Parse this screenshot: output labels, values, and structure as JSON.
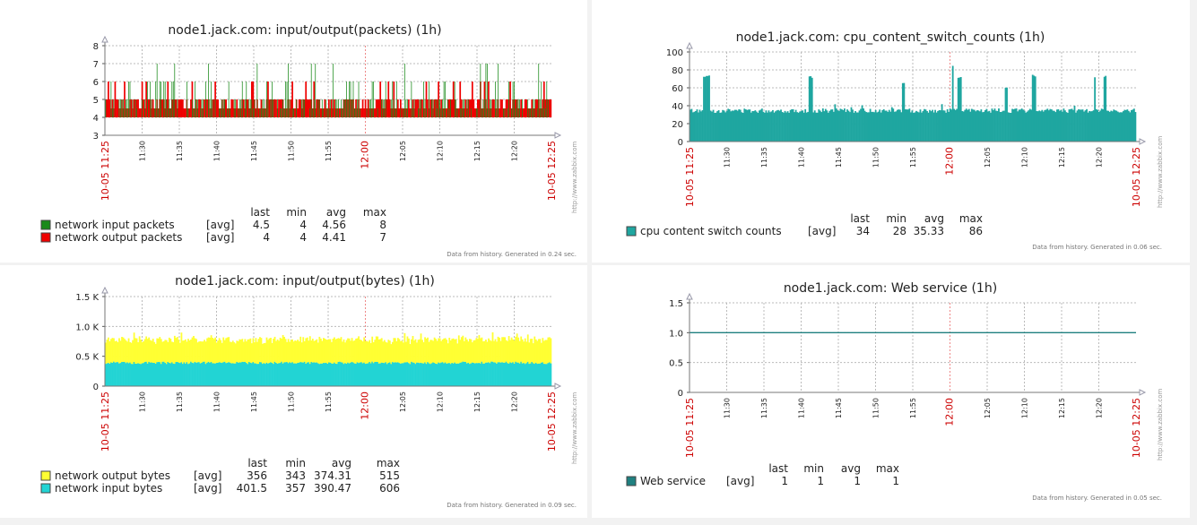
{
  "colors": {
    "green": "#1a8a1a",
    "red": "#ee0000",
    "teal": "#1fa6a0",
    "yellow": "#ffff33",
    "cyan": "#22d4d4",
    "line": "#1f8080",
    "timestamp": "#cc0000"
  },
  "stat_headers": [
    "last",
    "min",
    "avg",
    "max"
  ],
  "chart_data": [
    {
      "type": "bar",
      "title": "node1.jack.com: input/output(packets) (1h)",
      "x_labels": [
        "11:30",
        "11:35",
        "11:40",
        "11:45",
        "11:50",
        "11:55",
        "12:00",
        "12:05",
        "12:10",
        "12:15",
        "12:20"
      ],
      "x_start": "10-05 11:25",
      "x_end": "10-05 12:25",
      "ylim": [
        3,
        8
      ],
      "yticks": [
        "3",
        "4",
        "5",
        "6",
        "7",
        "8"
      ],
      "grid": true,
      "series": [
        {
          "name": "network input packets",
          "func": "[avg]",
          "last": "4.5",
          "min": "4",
          "avg": "4.56",
          "max": "8",
          "range": [
            4,
            7
          ]
        },
        {
          "name": "network output packets",
          "func": "[avg]",
          "last": "4",
          "min": "4",
          "avg": "4.41",
          "max": "7",
          "range": [
            4,
            6
          ]
        }
      ],
      "watermark": "http://www.zabbix.com",
      "generated": "Data from history. Generated in 0.24 sec."
    },
    {
      "type": "area",
      "title": "node1.jack.com: cpu_content_switch_counts (1h)",
      "x_labels": [
        "11:30",
        "11:35",
        "11:40",
        "11:45",
        "11:50",
        "11:55",
        "12:00",
        "12:05",
        "12:10",
        "12:15",
        "12:20"
      ],
      "x_start": "10-05 11:25",
      "x_end": "10-05 12:25",
      "ylim": [
        0,
        100
      ],
      "yticks": [
        "0",
        "20",
        "40",
        "60",
        "80",
        "100"
      ],
      "grid": true,
      "series": [
        {
          "name": "cpu content switch counts",
          "func": "[avg]",
          "last": "34",
          "min": "28",
          "avg": "35.33",
          "max": "86",
          "baseline": 35
        }
      ],
      "spikes": [
        {
          "x": 0.03,
          "y": 74,
          "w": 0.015
        },
        {
          "x": 0.265,
          "y": 72,
          "w": 0.01
        },
        {
          "x": 0.475,
          "y": 65,
          "w": 0.004
        },
        {
          "x": 0.585,
          "y": 86,
          "w": 0.004
        },
        {
          "x": 0.6,
          "y": 72,
          "w": 0.008
        },
        {
          "x": 0.705,
          "y": 60,
          "w": 0.005
        },
        {
          "x": 0.765,
          "y": 74,
          "w": 0.008
        },
        {
          "x": 0.905,
          "y": 72,
          "w": 0.004
        },
        {
          "x": 0.925,
          "y": 73,
          "w": 0.007
        }
      ],
      "watermark": "http://www.zabbix.com",
      "generated": "Data from history. Generated in 0.06 sec."
    },
    {
      "type": "area",
      "title": "node1.jack.com: input/output(bytes) (1h)",
      "x_labels": [
        "11:30",
        "11:35",
        "11:40",
        "11:45",
        "11:50",
        "11:55",
        "12:00",
        "12:05",
        "12:10",
        "12:15",
        "12:20"
      ],
      "x_start": "10-05 11:25",
      "x_end": "10-05 12:25",
      "ylim": [
        0,
        1.5
      ],
      "yticks": [
        "0",
        "0.5 K",
        "1.0 K",
        "1.5 K"
      ],
      "grid": true,
      "series": [
        {
          "name": "network output bytes",
          "func": "[avg]",
          "last": "356",
          "min": "343",
          "avg": "374.31",
          "max": "515"
        },
        {
          "name": "network input bytes",
          "func": "[avg]",
          "last": "401.5",
          "min": "357",
          "avg": "390.47",
          "max": "606"
        }
      ],
      "watermark": "http://www.zabbix.com",
      "generated": "Data from history. Generated in 0.09 sec."
    },
    {
      "type": "line",
      "title": "node1.jack.com: Web service (1h)",
      "x_labels": [
        "11:30",
        "11:35",
        "11:40",
        "11:45",
        "11:50",
        "11:55",
        "12:00",
        "12:05",
        "12:10",
        "12:15",
        "12:20"
      ],
      "x_start": "10-05 11:25",
      "x_end": "10-05 12:25",
      "ylim": [
        0,
        1.5
      ],
      "yticks": [
        "0",
        "0.5",
        "1.0",
        "1.5"
      ],
      "grid": true,
      "series": [
        {
          "name": "Web service",
          "func": "[avg]",
          "last": "1",
          "min": "1",
          "avg": "1",
          "max": "1",
          "value": 1
        }
      ],
      "watermark": "http://www.zabbix.com",
      "generated": "Data from history. Generated in 0.05 sec."
    }
  ]
}
